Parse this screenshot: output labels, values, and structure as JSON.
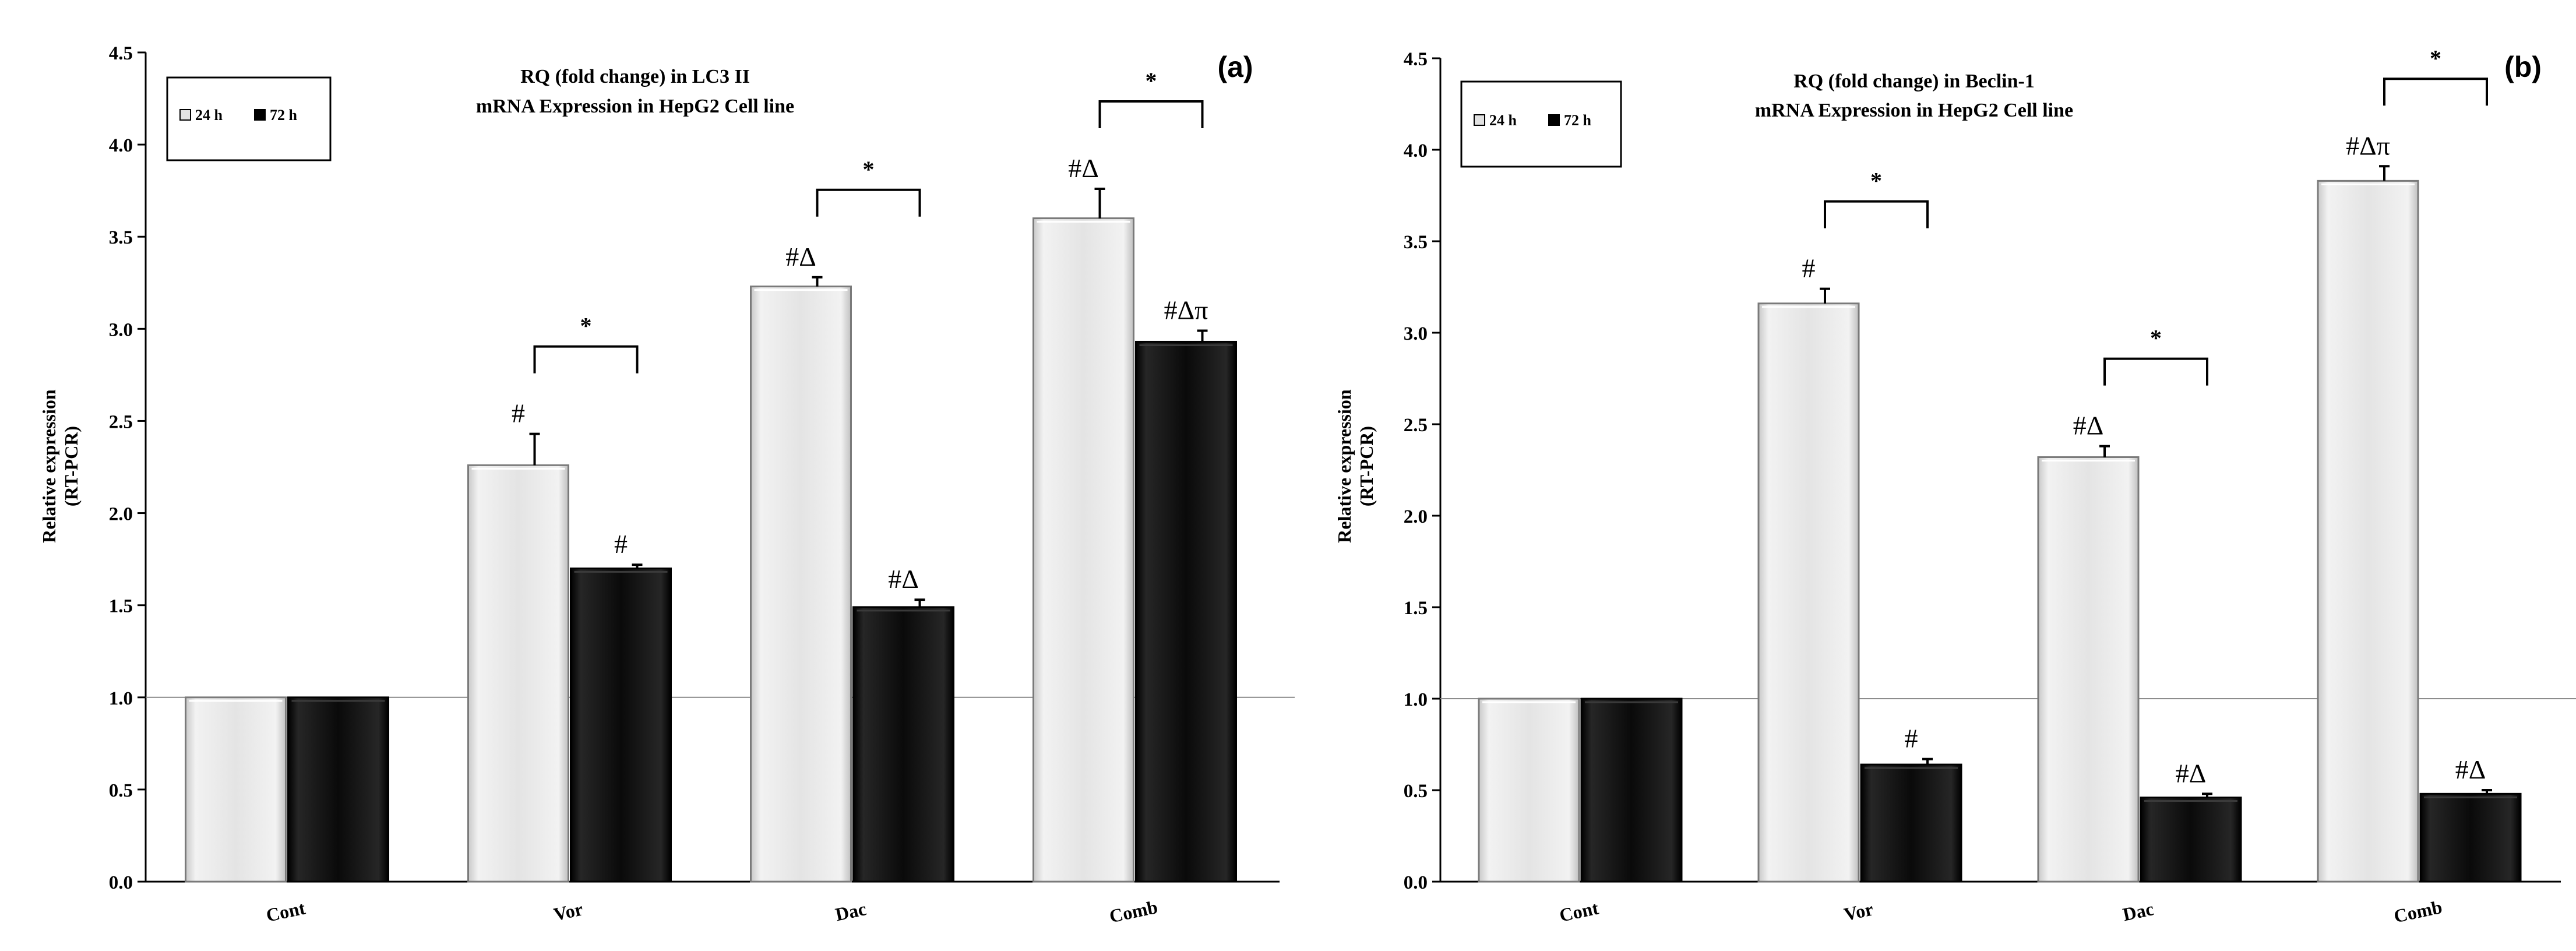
{
  "chart_data": [
    {
      "type": "bar",
      "panel": "(a)",
      "title": [
        "RQ (fold change) in LC3 II",
        "mRNA Expression in HepG2 Cell line"
      ],
      "ylabel": [
        "Relative expression",
        "(RT-PCR)"
      ],
      "xlabel": "",
      "ylim": [
        0,
        4.5
      ],
      "yticks": [
        "0.0",
        "0.5",
        "1.0",
        "1.5",
        "2.0",
        "2.5",
        "3.0",
        "3.5",
        "4.0",
        "4.5"
      ],
      "reference_line": 1.0,
      "categories": [
        "Cont",
        "Vor",
        "Dac",
        "Comb"
      ],
      "legend": {
        "position": "top-left",
        "entries": [
          "24 h",
          "72 h"
        ]
      },
      "series": [
        {
          "name": "24 h",
          "color": "#e2e2e2",
          "values": [
            1.0,
            2.26,
            3.23,
            3.6
          ],
          "errors": [
            0.0,
            0.17,
            0.05,
            0.16
          ],
          "labels": [
            "",
            "#",
            "#Δ",
            "#Δ"
          ]
        },
        {
          "name": "72 h",
          "color": "#000000",
          "values": [
            1.0,
            1.7,
            1.49,
            2.93
          ],
          "errors": [
            0.0,
            0.02,
            0.04,
            0.06
          ],
          "labels": [
            "",
            "#",
            "#Δ",
            "#Δπ"
          ]
        }
      ],
      "significance": [
        {
          "category": 1,
          "label": "*"
        },
        {
          "category": 2,
          "label": "*"
        },
        {
          "category": 3,
          "label": "*"
        }
      ]
    },
    {
      "type": "bar",
      "panel": "(b)",
      "title": [
        "RQ (fold change) in Beclin-1",
        "mRNA Expression in HepG2 Cell line"
      ],
      "ylabel": [
        "Relative expression",
        "(RT-PCR)"
      ],
      "xlabel": "",
      "ylim": [
        0,
        4.5
      ],
      "yticks": [
        "0.0",
        "0.5",
        "1.0",
        "1.5",
        "2.0",
        "2.5",
        "3.0",
        "3.5",
        "4.0",
        "4.5"
      ],
      "reference_line": 1.0,
      "categories": [
        "Cont",
        "Vor",
        "Dac",
        "Comb"
      ],
      "legend": {
        "position": "top-left",
        "entries": [
          "24 h",
          "72 h"
        ]
      },
      "series": [
        {
          "name": "24 h",
          "color": "#e2e2e2",
          "values": [
            1.0,
            3.16,
            2.32,
            3.83
          ],
          "errors": [
            0.0,
            0.08,
            0.06,
            0.08
          ],
          "labels": [
            "",
            "#",
            "#Δ",
            "#Δπ"
          ]
        },
        {
          "name": "72 h",
          "color": "#000000",
          "values": [
            1.0,
            0.64,
            0.46,
            0.48
          ],
          "errors": [
            0.0,
            0.03,
            0.02,
            0.02
          ],
          "labels": [
            "",
            "#",
            "#Δ",
            "#Δ"
          ]
        }
      ],
      "significance": [
        {
          "category": 1,
          "label": "*"
        },
        {
          "category": 2,
          "label": "*"
        },
        {
          "category": 3,
          "label": "*"
        }
      ]
    }
  ]
}
